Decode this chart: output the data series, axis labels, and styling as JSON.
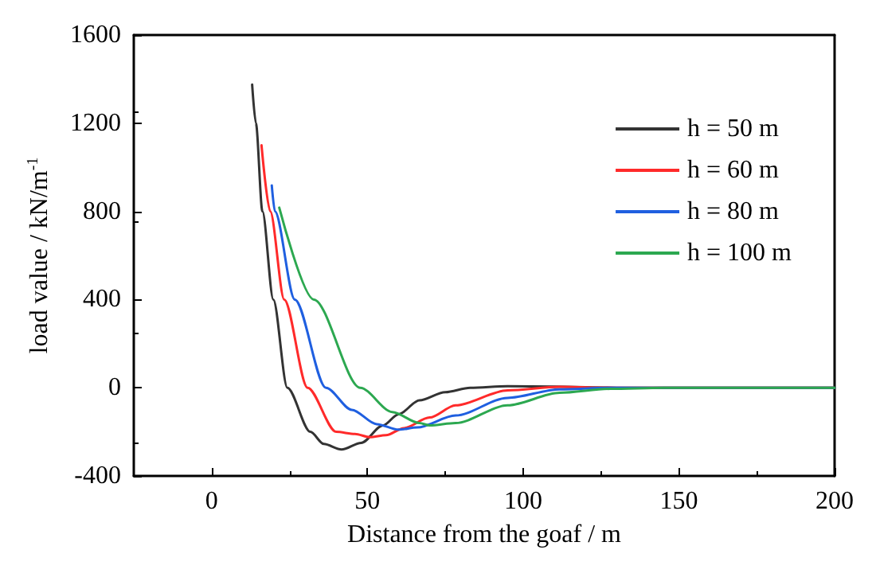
{
  "chart_data": {
    "type": "line",
    "xlabel": "Distance from the goaf / m",
    "ylabel": "load value / kN/m$^{-1}$",
    "xlim": [
      -25,
      200
    ],
    "xticks": [
      0,
      50,
      100,
      150,
      200
    ],
    "ylim": [
      -400,
      1600
    ],
    "yticks": [
      -400,
      0,
      400,
      800,
      1200,
      1600
    ],
    "grid": false,
    "legend": "top right",
    "marker": "none",
    "line_style": "solid",
    "series": [
      {
        "name": "h = 50 m",
        "color": "#333333",
        "x": [
          13,
          14.2,
          16.3,
          19.8,
          24.3,
          31.7,
          36,
          41.7,
          48,
          55,
          60,
          66.7,
          75,
          83,
          95,
          110,
          130,
          200
        ],
        "values": [
          1375,
          1200,
          800,
          400,
          0,
          -200,
          -255,
          -280,
          -250,
          -171,
          -120,
          -57,
          -20,
          0,
          7,
          5,
          0,
          0
        ]
      },
      {
        "name": "h = 60 m",
        "color": "#ff2a2a",
        "x": [
          16,
          18.8,
          23.3,
          30.8,
          40,
          46,
          50.8,
          56,
          61.7,
          70,
          78.3,
          95,
          111.7,
          130,
          200
        ],
        "values": [
          1100,
          800,
          400,
          0,
          -200,
          -210,
          -224,
          -215,
          -183,
          -135,
          -80,
          -12,
          4,
          0,
          0
        ]
      },
      {
        "name": "h = 80 m",
        "color": "#1f5fe0",
        "x": [
          19.3,
          20.3,
          26.7,
          36.7,
          45,
          53,
          60,
          66,
          78.3,
          95,
          111.7,
          128,
          200
        ],
        "values": [
          918,
          800,
          400,
          0,
          -100,
          -165,
          -190,
          -180,
          -126,
          -46,
          -7,
          0,
          0
        ]
      },
      {
        "name": "h = 100 m",
        "color": "#2ca850",
        "x": [
          21.7,
          32.8,
          47.7,
          58,
          66.7,
          70,
          78.3,
          95,
          111.7,
          128,
          145,
          200
        ],
        "values": [
          817,
          400,
          0,
          -110,
          -160,
          -171,
          -160,
          -80,
          -23,
          -5,
          0,
          0
        ]
      }
    ]
  }
}
